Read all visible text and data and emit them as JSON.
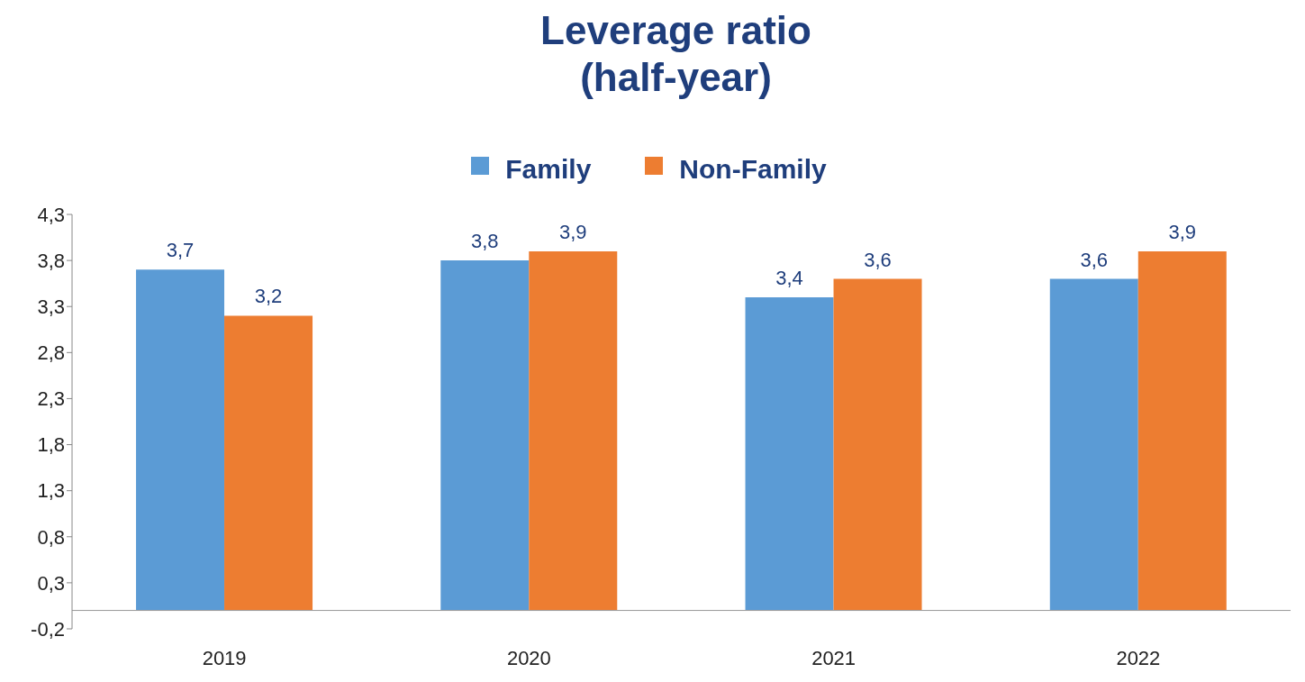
{
  "chart_data": {
    "type": "bar",
    "title": "Leverage ratio\n(half-year)",
    "categories": [
      "2019",
      "2020",
      "2021",
      "2022"
    ],
    "series": [
      {
        "name": "Family",
        "color": "#5b9bd5",
        "values": [
          3.7,
          3.8,
          3.4,
          3.6
        ],
        "value_labels": [
          "3,7",
          "3,8",
          "3,4",
          "3,6"
        ]
      },
      {
        "name": "Non-Family",
        "color": "#ed7d31",
        "values": [
          3.2,
          3.9,
          3.6,
          3.9
        ],
        "value_labels": [
          "3,2",
          "3,9",
          "3,6",
          "3,9"
        ]
      }
    ],
    "ylim": [
      -0.2,
      4.3
    ],
    "yticks": [
      {
        "value": -0.2,
        "label": "-0,2"
      },
      {
        "value": 0.3,
        "label": "0,3"
      },
      {
        "value": 0.8,
        "label": "0,8"
      },
      {
        "value": 1.3,
        "label": "1,3"
      },
      {
        "value": 1.8,
        "label": "1,8"
      },
      {
        "value": 2.3,
        "label": "2,3"
      },
      {
        "value": 2.8,
        "label": "2,8"
      },
      {
        "value": 3.3,
        "label": "3,3"
      },
      {
        "value": 3.8,
        "label": "3,8"
      },
      {
        "value": 4.3,
        "label": "4,3"
      }
    ],
    "legend": "top"
  }
}
